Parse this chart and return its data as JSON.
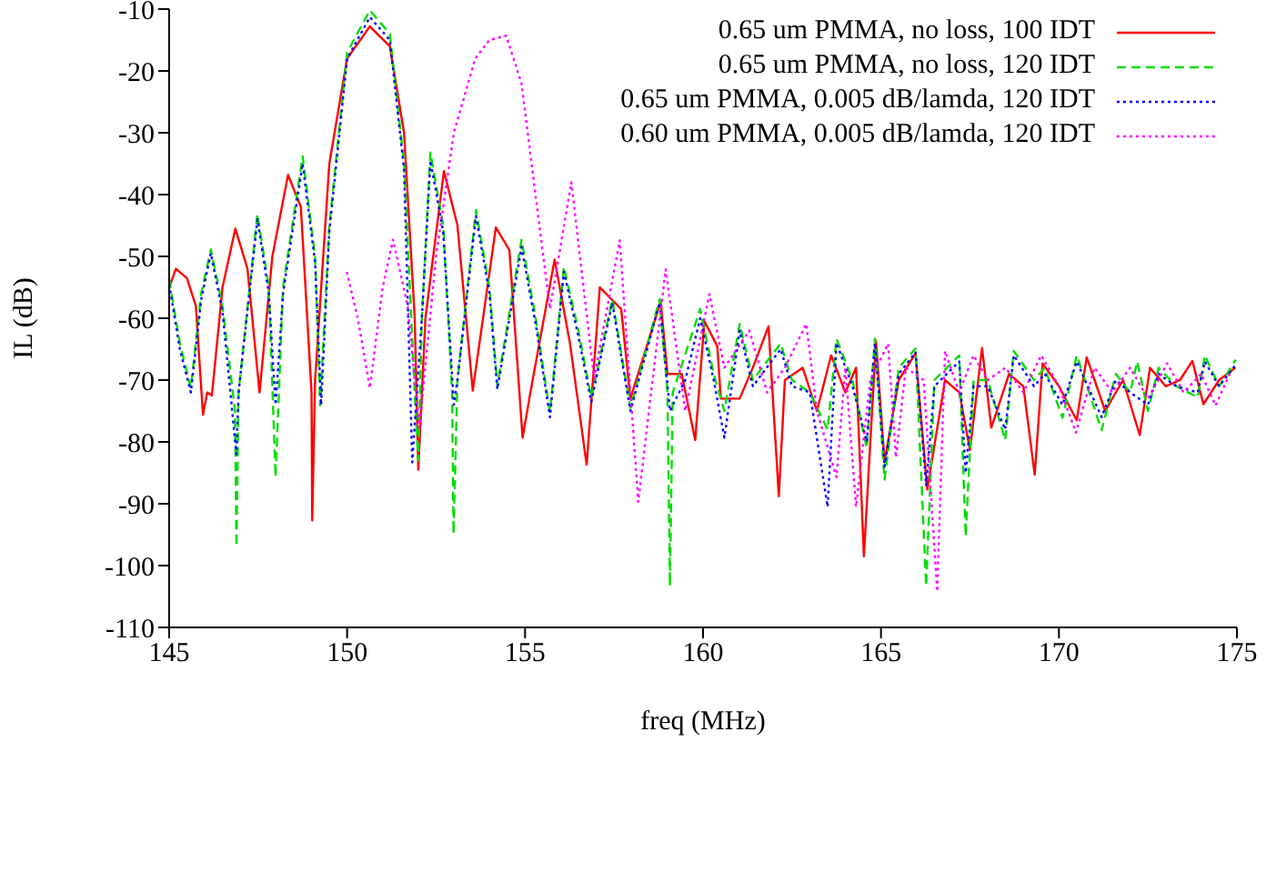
{
  "chart_data": {
    "type": "line",
    "xlabel": "freq (MHz)",
    "ylabel": "IL (dB)",
    "xlim": [
      145,
      175
    ],
    "xticks": [
      145,
      150,
      155,
      160,
      165,
      170,
      175
    ],
    "ylim": [
      -110,
      -10
    ],
    "yticks": [
      -110,
      -100,
      -90,
      -80,
      -70,
      -60,
      -50,
      -40,
      -30,
      -20,
      -10
    ],
    "grid": false,
    "legend": "top right",
    "marker": "none",
    "series": [
      {
        "name": "0.65 um PMMA, no loss, 100 IDT",
        "color": "#ff0000",
        "line_style": "solid",
        "x": [
          145.0,
          145.19,
          145.5,
          145.75,
          145.95,
          146.07,
          146.2,
          146.5,
          146.86,
          147.2,
          147.54,
          147.9,
          148.34,
          148.7,
          149.0,
          149.02,
          149.1,
          149.5,
          150.0,
          150.64,
          151.2,
          151.6,
          151.9,
          152.0,
          152.2,
          152.72,
          153.1,
          153.53,
          154.18,
          154.56,
          154.93,
          155.15,
          155.83,
          156.26,
          156.73,
          157.1,
          157.7,
          157.96,
          158.81,
          159.0,
          159.4,
          159.78,
          160.04,
          160.4,
          160.5,
          161.03,
          161.4,
          161.84,
          162.13,
          162.3,
          162.8,
          163.2,
          163.6,
          164.0,
          164.3,
          164.52,
          164.86,
          165.1,
          165.5,
          165.97,
          166.3,
          166.8,
          167.2,
          167.5,
          167.84,
          168.1,
          168.6,
          169.0,
          169.32,
          169.54,
          170.0,
          170.5,
          170.78,
          171.3,
          171.8,
          172.27,
          172.56,
          173.0,
          173.4,
          173.75,
          174.06,
          174.5,
          174.96
        ],
        "values": [
          -55,
          -52,
          -53.5,
          -58,
          -75.6,
          -72,
          -72.5,
          -55,
          -45.5,
          -52,
          -72,
          -50,
          -36.8,
          -42,
          -72,
          -92.7,
          -70,
          -35,
          -18,
          -12.8,
          -16,
          -30,
          -60,
          -84.5,
          -60,
          -36.2,
          -45,
          -71.7,
          -45.3,
          -49,
          -79.3,
          -72,
          -50.5,
          -64,
          -83.7,
          -55,
          -58.5,
          -73,
          -57.3,
          -69,
          -69,
          -79.7,
          -60.5,
          -64.5,
          -73,
          -73,
          -68,
          -61.3,
          -88.8,
          -70,
          -68,
          -75,
          -66,
          -72,
          -68,
          -98.5,
          -63.7,
          -83.3,
          -70,
          -65.7,
          -87.7,
          -70,
          -72,
          -81.3,
          -64.8,
          -77.7,
          -69,
          -71,
          -85.3,
          -67.3,
          -71,
          -76.5,
          -66.3,
          -75,
          -70,
          -78.9,
          -68,
          -71,
          -70,
          -66.9,
          -73.9,
          -70,
          -68
        ]
      },
      {
        "name": "0.65 um PMMA, no loss, 120 IDT",
        "color": "#00dd00",
        "line_style": "dashed",
        "x": [
          145.0,
          145.3,
          145.61,
          145.9,
          146.17,
          146.5,
          146.85,
          146.89,
          146.95,
          147.48,
          147.8,
          147.99,
          148.2,
          148.75,
          149.1,
          149.24,
          149.5,
          150.0,
          150.64,
          151.2,
          151.6,
          151.9,
          152.0,
          152.1,
          152.34,
          152.7,
          152.95,
          152.99,
          153.1,
          153.62,
          154.0,
          154.22,
          154.9,
          155.3,
          155.7,
          156.09,
          156.5,
          156.86,
          157.45,
          157.96,
          158.78,
          159.0,
          159.07,
          159.15,
          159.92,
          160.3,
          160.6,
          161.03,
          161.4,
          162.18,
          162.5,
          163.0,
          163.5,
          163.75,
          164.2,
          164.6,
          164.83,
          165.1,
          165.5,
          165.97,
          166.27,
          166.5,
          167.2,
          167.38,
          167.6,
          168.0,
          168.49,
          168.73,
          169.3,
          169.6,
          170.1,
          170.5,
          171.2,
          171.6,
          172.0,
          172.2,
          172.5,
          172.8,
          173.3,
          173.9,
          174.1,
          174.5,
          174.97
        ],
        "values": [
          -53.7,
          -64,
          -71.3,
          -56,
          -48.9,
          -58,
          -75,
          -96.9,
          -72,
          -43.1,
          -55,
          -85.7,
          -55,
          -33.8,
          -50,
          -74.1,
          -45,
          -17,
          -10.2,
          -14,
          -35,
          -72,
          -83,
          -60,
          -33.2,
          -45,
          -72,
          -94.9,
          -70,
          -42.5,
          -55,
          -70.9,
          -47.3,
          -60,
          -75.3,
          -51.7,
          -62,
          -72.9,
          -56.9,
          -74.5,
          -56.9,
          -72,
          -103.3,
          -72,
          -58.5,
          -69,
          -75,
          -60.9,
          -70,
          -64.1,
          -70,
          -72,
          -78,
          -63.3,
          -70,
          -81,
          -63.3,
          -86.1,
          -68,
          -64.9,
          -103.3,
          -70,
          -66,
          -95.3,
          -70,
          -70,
          -79.7,
          -65.3,
          -70,
          -68,
          -76.1,
          -66,
          -78.1,
          -69,
          -72,
          -67,
          -75,
          -68,
          -71,
          -72.8,
          -66,
          -71,
          -66.7
        ]
      },
      {
        "name": "0.65 um PMMA, 0.005 dB/lamda, 120 IDT",
        "color": "#0000ff",
        "line_style": "dotted",
        "x": [
          145.0,
          145.3,
          145.61,
          145.9,
          146.17,
          146.5,
          146.89,
          146.95,
          147.48,
          147.8,
          147.99,
          148.2,
          148.75,
          149.1,
          149.27,
          149.5,
          150.0,
          150.64,
          151.2,
          151.6,
          151.83,
          152.1,
          152.34,
          152.7,
          153.0,
          153.1,
          153.62,
          154.0,
          154.22,
          154.9,
          155.3,
          155.7,
          156.09,
          156.5,
          156.86,
          157.45,
          157.96,
          158.78,
          159.07,
          159.5,
          159.92,
          160.3,
          160.6,
          161.03,
          161.4,
          162.18,
          162.5,
          163.0,
          163.5,
          163.75,
          164.2,
          164.6,
          164.83,
          165.1,
          165.5,
          165.97,
          166.27,
          166.5,
          167.2,
          167.38,
          167.6,
          168.0,
          168.49,
          168.73,
          169.3,
          169.6,
          170.1,
          170.5,
          171.2,
          171.6,
          172.0,
          172.5,
          172.8,
          173.3,
          173.9,
          174.1,
          174.5,
          174.97
        ],
        "values": [
          -54.5,
          -65,
          -72,
          -57,
          -49.5,
          -59,
          -82,
          -72,
          -44,
          -56,
          -74,
          -56,
          -35,
          -51,
          -74,
          -46,
          -18,
          -11.3,
          -15,
          -36,
          -83.3,
          -60,
          -34.5,
          -46,
          -74,
          -70,
          -43.5,
          -56,
          -71.5,
          -48.5,
          -61,
          -76,
          -52.5,
          -63,
          -73.5,
          -57.5,
          -75,
          -57.5,
          -75,
          -70,
          -60,
          -70,
          -79.3,
          -62,
          -71,
          -65,
          -71,
          -72,
          -90.5,
          -64,
          -71,
          -80,
          -64,
          -84,
          -69,
          -65.5,
          -87,
          -71,
          -67,
          -85,
          -71,
          -71,
          -78,
          -66,
          -71,
          -69,
          -74,
          -67,
          -76,
          -70,
          -72,
          -74,
          -69,
          -71,
          -72,
          -67,
          -71,
          -67.5
        ]
      },
      {
        "name": "0.60 um PMMA, 0.005 dB/lamda, 120 IDT",
        "color": "#ff00ff",
        "line_style": "dotted",
        "x": [
          149.99,
          150.3,
          150.64,
          151.0,
          151.29,
          151.7,
          152.03,
          152.5,
          153.0,
          153.6,
          154.0,
          154.47,
          154.9,
          155.4,
          155.7,
          156.3,
          156.94,
          157.66,
          158.18,
          158.95,
          159.5,
          160.18,
          160.6,
          161.3,
          161.8,
          162.3,
          162.9,
          163.2,
          163.75,
          164.0,
          164.3,
          164.7,
          165.2,
          165.42,
          165.7,
          166.2,
          166.58,
          166.8,
          167.2,
          167.6,
          168.0,
          168.5,
          169.0,
          169.5,
          170.0,
          170.48,
          171.0,
          171.5,
          172.0,
          172.5,
          173.04,
          173.5,
          174.0,
          174.4,
          174.8
        ],
        "values": [
          -52.5,
          -60,
          -71.3,
          -55,
          -47.3,
          -58,
          -77.7,
          -50,
          -30,
          -18,
          -15,
          -14.3,
          -22,
          -44.9,
          -58.5,
          -38,
          -69.7,
          -47.4,
          -89.7,
          -52.1,
          -75,
          -56.1,
          -68,
          -62,
          -72,
          -68,
          -60.9,
          -75,
          -85.7,
          -68,
          -90.5,
          -70,
          -64.1,
          -82.5,
          -68,
          -70,
          -104.2,
          -65.3,
          -72,
          -66,
          -70,
          -68,
          -72,
          -66,
          -71,
          -78.5,
          -68,
          -72,
          -68,
          -73,
          -67.3,
          -72,
          -69,
          -74.1,
          -69
        ]
      }
    ]
  }
}
